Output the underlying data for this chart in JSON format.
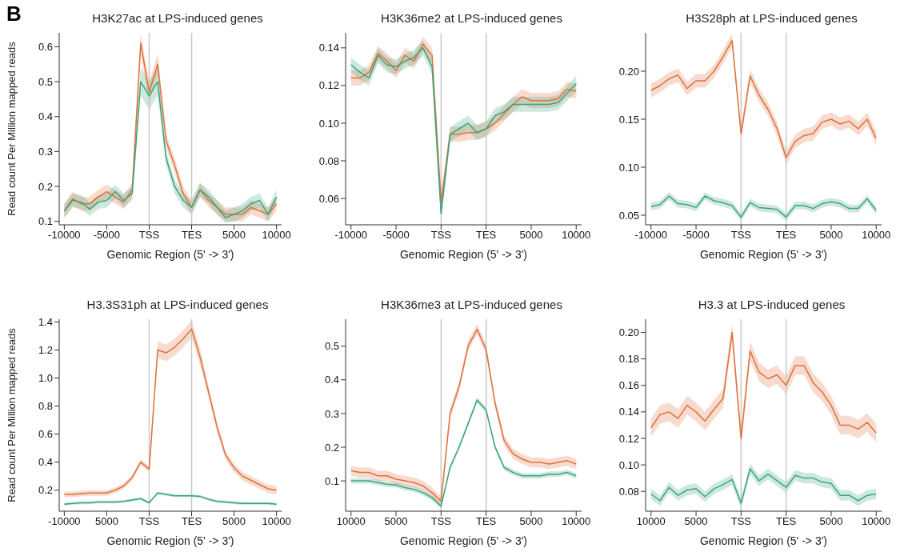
{
  "chart_data": [
    {
      "type": "line",
      "title": "H3K27ac at LPS-induced genes",
      "xlabel": "Genomic Region (5'  -> 3')",
      "ylabel": "Read count Per Million mapped reads",
      "annotations": [
        "B"
      ],
      "categories": [
        "-10000",
        null,
        null,
        null,
        null,
        "-5000",
        null,
        null,
        null,
        null,
        "TSS",
        null,
        null,
        null,
        null,
        "TES",
        null,
        null,
        null,
        null,
        "5000",
        null,
        null,
        null,
        null,
        "10000"
      ],
      "ylim": [
        0.09,
        0.64
      ],
      "yticks": [
        0.1,
        0.2,
        0.3,
        0.4,
        0.5,
        0.6
      ],
      "ref_lines": [
        {
          "axis": "x",
          "value": "TSS",
          "color": "#c8c8c8"
        },
        {
          "axis": "x",
          "value": "TES",
          "color": "#c8c8c8"
        }
      ],
      "series": [
        {
          "color": "#e0703c",
          "values": [
            0.13,
            0.165,
            0.15,
            0.15,
            0.17,
            0.185,
            0.17,
            0.155,
            0.19,
            0.61,
            0.47,
            0.55,
            0.33,
            0.26,
            0.18,
            0.14,
            0.19,
            0.16,
            0.14,
            0.12,
            0.12,
            0.12,
            0.14,
            0.13,
            0.12,
            0.15
          ],
          "lower": [
            0.11,
            0.145,
            0.13,
            0.13,
            0.15,
            0.165,
            0.15,
            0.135,
            0.17,
            0.58,
            0.44,
            0.52,
            0.31,
            0.24,
            0.16,
            0.12,
            0.17,
            0.14,
            0.12,
            0.1,
            0.1,
            0.1,
            0.12,
            0.11,
            0.1,
            0.13
          ],
          "upper": [
            0.15,
            0.185,
            0.17,
            0.17,
            0.19,
            0.205,
            0.19,
            0.175,
            0.21,
            0.64,
            0.5,
            0.58,
            0.35,
            0.28,
            0.2,
            0.16,
            0.21,
            0.18,
            0.16,
            0.14,
            0.14,
            0.14,
            0.16,
            0.15,
            0.14,
            0.17
          ]
        },
        {
          "color": "#3aa57d",
          "values": [
            0.13,
            0.16,
            0.155,
            0.135,
            0.155,
            0.16,
            0.185,
            0.16,
            0.18,
            0.5,
            0.46,
            0.5,
            0.28,
            0.2,
            0.16,
            0.14,
            0.19,
            0.17,
            0.14,
            0.11,
            0.12,
            0.13,
            0.15,
            0.16,
            0.12,
            0.17
          ],
          "lower": [
            0.11,
            0.14,
            0.135,
            0.115,
            0.135,
            0.14,
            0.165,
            0.14,
            0.16,
            0.46,
            0.42,
            0.46,
            0.26,
            0.18,
            0.14,
            0.12,
            0.17,
            0.15,
            0.12,
            0.095,
            0.1,
            0.11,
            0.13,
            0.14,
            0.1,
            0.15
          ],
          "upper": [
            0.15,
            0.18,
            0.175,
            0.155,
            0.175,
            0.18,
            0.205,
            0.18,
            0.2,
            0.54,
            0.5,
            0.54,
            0.3,
            0.22,
            0.18,
            0.16,
            0.21,
            0.19,
            0.16,
            0.13,
            0.14,
            0.15,
            0.17,
            0.18,
            0.14,
            0.19
          ]
        }
      ]
    },
    {
      "type": "line",
      "title": "H3K36me2 at LPS-induced genes",
      "xlabel": "Genomic Region (5'  -> 3')",
      "categories": [
        "-10000",
        null,
        null,
        null,
        null,
        "-5000",
        null,
        null,
        null,
        null,
        "TSS",
        null,
        null,
        null,
        null,
        "TES",
        null,
        null,
        null,
        null,
        "5000",
        null,
        null,
        null,
        null,
        "10000"
      ],
      "ylim": [
        0.046,
        0.148
      ],
      "yticks": [
        {
          "value": 0.06,
          "label": "0.06"
        },
        {
          "value": 0.08,
          "label": "0.08"
        },
        {
          "value": 0.1,
          "label": "0.10"
        },
        {
          "value": 0.12,
          "label": "0.12"
        },
        {
          "value": 0.14,
          "label": "0.14"
        }
      ],
      "ref_lines": [
        {
          "axis": "x",
          "value": "TSS",
          "color": "#c8c8c8"
        },
        {
          "axis": "x",
          "value": "TES",
          "color": "#c8c8c8"
        }
      ],
      "series": [
        {
          "color": "#e0703c",
          "values": [
            0.124,
            0.124,
            0.127,
            0.137,
            0.133,
            0.128,
            0.136,
            0.133,
            0.142,
            0.136,
            0.058,
            0.094,
            0.094,
            0.095,
            0.095,
            0.097,
            0.1,
            0.105,
            0.11,
            0.114,
            0.112,
            0.112,
            0.112,
            0.113,
            0.118,
            0.117
          ],
          "lower": [
            0.12,
            0.12,
            0.123,
            0.133,
            0.129,
            0.124,
            0.132,
            0.129,
            0.138,
            0.132,
            0.054,
            0.09,
            0.09,
            0.091,
            0.091,
            0.093,
            0.096,
            0.101,
            0.106,
            0.11,
            0.108,
            0.108,
            0.108,
            0.109,
            0.114,
            0.113
          ],
          "upper": [
            0.128,
            0.128,
            0.131,
            0.141,
            0.137,
            0.132,
            0.14,
            0.137,
            0.146,
            0.14,
            0.062,
            0.098,
            0.098,
            0.099,
            0.099,
            0.101,
            0.104,
            0.109,
            0.114,
            0.118,
            0.116,
            0.116,
            0.116,
            0.117,
            0.122,
            0.121
          ]
        },
        {
          "color": "#3aa57d",
          "values": [
            0.131,
            0.127,
            0.124,
            0.136,
            0.131,
            0.13,
            0.133,
            0.135,
            0.14,
            0.13,
            0.052,
            0.094,
            0.097,
            0.1,
            0.095,
            0.097,
            0.104,
            0.106,
            0.11,
            0.11,
            0.11,
            0.11,
            0.11,
            0.111,
            0.116,
            0.121
          ],
          "lower": [
            0.127,
            0.123,
            0.12,
            0.132,
            0.127,
            0.126,
            0.129,
            0.131,
            0.136,
            0.126,
            0.048,
            0.09,
            0.093,
            0.096,
            0.091,
            0.093,
            0.1,
            0.102,
            0.106,
            0.106,
            0.106,
            0.106,
            0.106,
            0.107,
            0.112,
            0.117
          ],
          "upper": [
            0.135,
            0.131,
            0.128,
            0.14,
            0.135,
            0.134,
            0.137,
            0.139,
            0.144,
            0.134,
            0.056,
            0.098,
            0.101,
            0.104,
            0.099,
            0.101,
            0.108,
            0.11,
            0.114,
            0.114,
            0.114,
            0.114,
            0.114,
            0.115,
            0.12,
            0.125
          ]
        }
      ]
    },
    {
      "type": "line",
      "title": "H3S28ph at LPS-induced genes",
      "xlabel": "Genomic Region (5'  -> 3')",
      "categories": [
        "-10000",
        null,
        null,
        null,
        null,
        "-5000",
        null,
        null,
        null,
        null,
        "TSS",
        null,
        null,
        null,
        null,
        "TES",
        null,
        null,
        null,
        null,
        "5000",
        null,
        null,
        null,
        null,
        "10000"
      ],
      "ylim": [
        0.04,
        0.24
      ],
      "yticks": [
        {
          "value": 0.05,
          "label": "0.05"
        },
        {
          "value": 0.1,
          "label": "0.10"
        },
        {
          "value": 0.15,
          "label": "0.15"
        },
        {
          "value": 0.2,
          "label": "0.20"
        }
      ],
      "ref_lines": [
        {
          "axis": "x",
          "value": "TSS",
          "color": "#c8c8c8"
        },
        {
          "axis": "x",
          "value": "TES",
          "color": "#c8c8c8"
        }
      ],
      "series": [
        {
          "color": "#e0703c",
          "values": [
            0.18,
            0.185,
            0.192,
            0.196,
            0.182,
            0.19,
            0.19,
            0.2,
            0.215,
            0.232,
            0.135,
            0.195,
            0.175,
            0.16,
            0.14,
            0.11,
            0.127,
            0.133,
            0.135,
            0.147,
            0.15,
            0.145,
            0.148,
            0.14,
            0.15,
            0.13
          ],
          "lower": [
            0.173,
            0.178,
            0.185,
            0.189,
            0.175,
            0.183,
            0.183,
            0.193,
            0.208,
            0.225,
            0.128,
            0.188,
            0.168,
            0.153,
            0.133,
            0.103,
            0.12,
            0.126,
            0.128,
            0.14,
            0.143,
            0.138,
            0.141,
            0.133,
            0.143,
            0.123
          ],
          "upper": [
            0.187,
            0.192,
            0.199,
            0.203,
            0.189,
            0.197,
            0.197,
            0.207,
            0.222,
            0.239,
            0.142,
            0.202,
            0.182,
            0.167,
            0.147,
            0.117,
            0.134,
            0.14,
            0.142,
            0.154,
            0.157,
            0.152,
            0.155,
            0.147,
            0.157,
            0.137
          ]
        },
        {
          "color": "#3aa57d",
          "values": [
            0.059,
            0.061,
            0.07,
            0.062,
            0.061,
            0.058,
            0.07,
            0.065,
            0.063,
            0.06,
            0.048,
            0.063,
            0.058,
            0.057,
            0.056,
            0.048,
            0.06,
            0.06,
            0.057,
            0.062,
            0.064,
            0.062,
            0.057,
            0.057,
            0.067,
            0.055
          ],
          "lower": [
            0.055,
            0.057,
            0.066,
            0.058,
            0.057,
            0.054,
            0.066,
            0.061,
            0.059,
            0.056,
            0.044,
            0.059,
            0.054,
            0.053,
            0.052,
            0.044,
            0.056,
            0.056,
            0.053,
            0.058,
            0.06,
            0.058,
            0.053,
            0.053,
            0.063,
            0.051
          ],
          "upper": [
            0.063,
            0.065,
            0.074,
            0.066,
            0.065,
            0.062,
            0.074,
            0.069,
            0.067,
            0.064,
            0.052,
            0.067,
            0.062,
            0.061,
            0.06,
            0.052,
            0.064,
            0.064,
            0.061,
            0.066,
            0.068,
            0.066,
            0.061,
            0.061,
            0.071,
            0.059
          ]
        }
      ]
    },
    {
      "type": "line",
      "title": "H3.3S31ph at LPS-induced genes",
      "xlabel": "Genomic Region (5'  -> 3')",
      "ylabel": "Read count Per Million mapped reads",
      "categories": [
        "-10000",
        null,
        null,
        null,
        null,
        "5000",
        null,
        null,
        null,
        null,
        "TSS",
        null,
        null,
        null,
        null,
        "TES",
        null,
        null,
        null,
        null,
        "5000",
        null,
        null,
        null,
        null,
        "10000"
      ],
      "ylim": [
        0.05,
        1.42
      ],
      "yticks": [
        0.2,
        0.4,
        0.6,
        0.8,
        {
          "value": 1,
          "label": "1.0"
        },
        1.2,
        1.4
      ],
      "ref_lines": [
        {
          "axis": "x",
          "value": "TSS",
          "color": "#c8c8c8"
        },
        {
          "axis": "x",
          "value": "TES",
          "color": "#c8c8c8"
        }
      ],
      "series": [
        {
          "color": "#e0703c",
          "values": [
            0.17,
            0.17,
            0.175,
            0.18,
            0.18,
            0.18,
            0.2,
            0.23,
            0.29,
            0.4,
            0.35,
            1.2,
            1.18,
            1.22,
            1.28,
            1.35,
            1.15,
            0.9,
            0.65,
            0.45,
            0.36,
            0.3,
            0.27,
            0.24,
            0.21,
            0.2
          ],
          "lower": [
            0.15,
            0.15,
            0.155,
            0.16,
            0.16,
            0.16,
            0.18,
            0.21,
            0.27,
            0.38,
            0.33,
            1.14,
            1.12,
            1.16,
            1.22,
            1.29,
            1.09,
            0.86,
            0.61,
            0.42,
            0.33,
            0.27,
            0.24,
            0.21,
            0.18,
            0.17
          ],
          "upper": [
            0.19,
            0.19,
            0.195,
            0.2,
            0.2,
            0.2,
            0.22,
            0.25,
            0.31,
            0.42,
            0.37,
            1.26,
            1.24,
            1.28,
            1.34,
            1.41,
            1.21,
            0.94,
            0.69,
            0.48,
            0.39,
            0.33,
            0.3,
            0.27,
            0.24,
            0.23
          ]
        },
        {
          "color": "#3aa57d",
          "values": [
            0.1,
            0.105,
            0.11,
            0.11,
            0.115,
            0.115,
            0.115,
            0.12,
            0.13,
            0.14,
            0.11,
            0.18,
            0.17,
            0.16,
            0.16,
            0.16,
            0.155,
            0.135,
            0.12,
            0.115,
            0.11,
            0.105,
            0.105,
            0.105,
            0.105,
            0.1
          ],
          "lower": [
            0.09,
            0.095,
            0.1,
            0.1,
            0.105,
            0.105,
            0.105,
            0.11,
            0.12,
            0.13,
            0.1,
            0.17,
            0.16,
            0.15,
            0.15,
            0.15,
            0.145,
            0.125,
            0.11,
            0.105,
            0.1,
            0.095,
            0.095,
            0.095,
            0.095,
            0.09
          ],
          "upper": [
            0.11,
            0.115,
            0.12,
            0.12,
            0.125,
            0.125,
            0.125,
            0.13,
            0.14,
            0.15,
            0.12,
            0.19,
            0.18,
            0.17,
            0.17,
            0.17,
            0.165,
            0.145,
            0.13,
            0.125,
            0.12,
            0.115,
            0.115,
            0.115,
            0.115,
            0.11
          ]
        }
      ]
    },
    {
      "type": "line",
      "title": "H3K36me3 at LPS-induced genes",
      "xlabel": "Genomic Region (5'  -> 3')",
      "categories": [
        "10000",
        null,
        null,
        null,
        null,
        "5000",
        null,
        null,
        null,
        null,
        "TSS",
        null,
        null,
        null,
        null,
        "TES",
        null,
        null,
        null,
        null,
        "5000",
        null,
        null,
        null,
        null,
        "10000"
      ],
      "ylim": [
        0.01,
        0.58
      ],
      "yticks": [
        0.1,
        0.2,
        0.3,
        0.4,
        0.5
      ],
      "ref_lines": [
        {
          "axis": "x",
          "value": "TSS",
          "color": "#c8c8c8"
        },
        {
          "axis": "x",
          "value": "TES",
          "color": "#c8c8c8"
        }
      ],
      "series": [
        {
          "color": "#e0703c",
          "values": [
            0.13,
            0.125,
            0.125,
            0.115,
            0.115,
            0.105,
            0.1,
            0.095,
            0.085,
            0.065,
            0.04,
            0.3,
            0.38,
            0.5,
            0.55,
            0.49,
            0.33,
            0.22,
            0.18,
            0.165,
            0.155,
            0.155,
            0.15,
            0.155,
            0.16,
            0.15
          ],
          "lower": [
            0.115,
            0.11,
            0.11,
            0.1,
            0.1,
            0.09,
            0.085,
            0.08,
            0.07,
            0.05,
            0.025,
            0.285,
            0.365,
            0.485,
            0.535,
            0.475,
            0.315,
            0.205,
            0.165,
            0.15,
            0.14,
            0.14,
            0.135,
            0.14,
            0.145,
            0.135
          ],
          "upper": [
            0.145,
            0.14,
            0.14,
            0.13,
            0.13,
            0.12,
            0.115,
            0.11,
            0.1,
            0.08,
            0.055,
            0.315,
            0.395,
            0.515,
            0.565,
            0.505,
            0.345,
            0.235,
            0.195,
            0.18,
            0.17,
            0.17,
            0.165,
            0.17,
            0.175,
            0.165
          ]
        },
        {
          "color": "#3aa57d",
          "values": [
            0.1,
            0.1,
            0.1,
            0.095,
            0.09,
            0.088,
            0.08,
            0.075,
            0.065,
            0.05,
            0.025,
            0.14,
            0.2,
            0.27,
            0.34,
            0.31,
            0.2,
            0.14,
            0.125,
            0.115,
            0.115,
            0.115,
            0.12,
            0.12,
            0.125,
            0.115
          ],
          "lower": [
            0.092,
            0.092,
            0.092,
            0.087,
            0.082,
            0.08,
            0.072,
            0.067,
            0.057,
            0.042,
            0.017,
            0.132,
            0.192,
            0.262,
            0.332,
            0.302,
            0.192,
            0.132,
            0.117,
            0.107,
            0.107,
            0.107,
            0.112,
            0.112,
            0.117,
            0.107
          ],
          "upper": [
            0.108,
            0.108,
            0.108,
            0.103,
            0.098,
            0.096,
            0.088,
            0.083,
            0.073,
            0.058,
            0.033,
            0.148,
            0.208,
            0.278,
            0.348,
            0.318,
            0.208,
            0.148,
            0.133,
            0.123,
            0.123,
            0.123,
            0.128,
            0.128,
            0.133,
            0.123
          ]
        }
      ]
    },
    {
      "type": "line",
      "title": "H3.3 at LPS-induced genes",
      "xlabel": "Genomic Region (5'  -> 3')",
      "categories": [
        "10000",
        null,
        null,
        null,
        null,
        "5000",
        null,
        null,
        null,
        null,
        "TSS",
        null,
        null,
        null,
        null,
        "TES",
        null,
        null,
        null,
        null,
        "5000",
        null,
        null,
        null,
        null,
        "10000"
      ],
      "ylim": [
        0.065,
        0.21
      ],
      "yticks": [
        {
          "value": 0.08,
          "label": "0.08"
        },
        {
          "value": 0.1,
          "label": "0.10"
        },
        {
          "value": 0.12,
          "label": "0.12"
        },
        {
          "value": 0.14,
          "label": "0.14"
        },
        {
          "value": 0.16,
          "label": "0.16"
        },
        {
          "value": 0.18,
          "label": "0.18"
        },
        {
          "value": 0.2,
          "label": "0.20"
        }
      ],
      "ref_lines": [
        {
          "axis": "x",
          "value": "TSS",
          "color": "#c8c8c8"
        },
        {
          "axis": "x",
          "value": "TES",
          "color": "#c8c8c8"
        }
      ],
      "series": [
        {
          "color": "#e0703c",
          "values": [
            0.128,
            0.138,
            0.14,
            0.135,
            0.145,
            0.14,
            0.133,
            0.142,
            0.15,
            0.2,
            0.12,
            0.186,
            0.17,
            0.165,
            0.168,
            0.16,
            0.175,
            0.175,
            0.162,
            0.155,
            0.145,
            0.13,
            0.13,
            0.127,
            0.132,
            0.124
          ],
          "lower": [
            0.121,
            0.131,
            0.133,
            0.128,
            0.138,
            0.133,
            0.126,
            0.135,
            0.143,
            0.193,
            0.113,
            0.179,
            0.163,
            0.158,
            0.161,
            0.153,
            0.168,
            0.168,
            0.155,
            0.148,
            0.138,
            0.123,
            0.123,
            0.12,
            0.125,
            0.117
          ],
          "upper": [
            0.135,
            0.145,
            0.147,
            0.142,
            0.152,
            0.147,
            0.14,
            0.149,
            0.157,
            0.207,
            0.127,
            0.193,
            0.177,
            0.172,
            0.175,
            0.167,
            0.182,
            0.182,
            0.169,
            0.162,
            0.152,
            0.137,
            0.137,
            0.134,
            0.139,
            0.131
          ]
        },
        {
          "color": "#3aa57d",
          "values": [
            0.078,
            0.073,
            0.083,
            0.077,
            0.081,
            0.082,
            0.076,
            0.082,
            0.085,
            0.089,
            0.071,
            0.097,
            0.088,
            0.093,
            0.088,
            0.083,
            0.092,
            0.09,
            0.09,
            0.087,
            0.086,
            0.077,
            0.077,
            0.073,
            0.077,
            0.078
          ],
          "lower": [
            0.074,
            0.069,
            0.079,
            0.073,
            0.077,
            0.078,
            0.072,
            0.078,
            0.081,
            0.085,
            0.067,
            0.093,
            0.084,
            0.089,
            0.084,
            0.079,
            0.088,
            0.086,
            0.086,
            0.083,
            0.082,
            0.073,
            0.073,
            0.069,
            0.073,
            0.074
          ],
          "upper": [
            0.082,
            0.077,
            0.087,
            0.081,
            0.085,
            0.086,
            0.08,
            0.086,
            0.089,
            0.093,
            0.075,
            0.101,
            0.092,
            0.097,
            0.092,
            0.087,
            0.096,
            0.094,
            0.094,
            0.091,
            0.09,
            0.081,
            0.081,
            0.077,
            0.081,
            0.082
          ]
        }
      ]
    }
  ]
}
